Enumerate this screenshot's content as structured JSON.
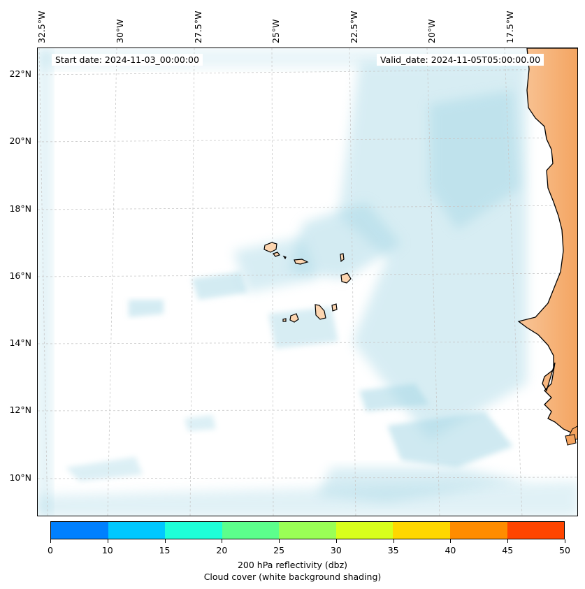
{
  "map": {
    "annotations": {
      "start_date": "Start date: 2024-11-03_00:00:00",
      "valid_date": "Valid_date: 2024-11-05T05:00:00.00"
    },
    "longitude_labels": [
      "32.5°W",
      "30°W",
      "27.5°W",
      "25°W",
      "22.5°W",
      "20°W",
      "17.5°W"
    ],
    "latitude_labels": [
      "22°N",
      "20°N",
      "18°N",
      "16°N",
      "14°N",
      "12°N",
      "10°N"
    ],
    "colors": {
      "land_fill": "#f4a460",
      "island_fill": "#fcd5b0",
      "cloud_shading": "#a8d8e6",
      "gridline": "#c8c8c8"
    }
  },
  "colorbar": {
    "ticks": [
      "0",
      "10",
      "15",
      "20",
      "25",
      "30",
      "35",
      "40",
      "45",
      "50"
    ],
    "colors": [
      "#0080ff",
      "#00c8ff",
      "#1effd8",
      "#5cff8c",
      "#9aff56",
      "#d8ff1c",
      "#ffd700",
      "#ff8c00",
      "#ff4500"
    ],
    "label_line1": "200 hPa reflectivity (dbz)",
    "label_line2": "Cloud cover (white background shading)"
  }
}
